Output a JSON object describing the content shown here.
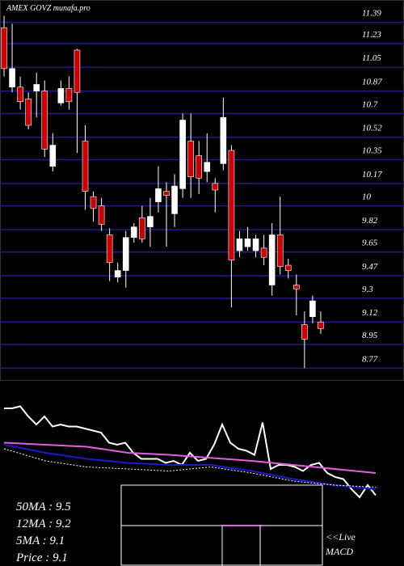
{
  "chart_data": [
    {
      "type": "candlestick",
      "title": "AMEX  GOVZ munafa.pro",
      "ylim": [
        8.68,
        11.56
      ],
      "yticks": [
        11.39,
        11.23,
        11.05,
        10.87,
        10.7,
        10.52,
        10.35,
        10.17,
        10,
        9.82,
        9.65,
        9.47,
        9.3,
        9.12,
        8.95,
        8.77
      ],
      "grid": true,
      "grid_color": "#1c1c8e",
      "up_color": "#ffffff",
      "down_color": "#cc0000",
      "open": [
        11.35,
        10.9,
        10.9,
        10.81,
        10.87,
        10.87,
        10.3,
        10.78,
        10.89,
        11.18,
        10.49,
        10.07,
        10.0,
        9.78,
        9.46,
        9.51,
        9.76,
        9.91,
        9.84,
        10.03,
        10.11,
        9.94,
        10.13,
        10.49,
        10.38,
        10.26,
        10.17,
        10.32,
        10.42,
        9.66,
        9.69,
        9.66,
        9.68,
        9.4,
        9.78,
        9.55,
        9.4,
        9.1,
        9.16,
        9.12
      ],
      "high": [
        11.44,
        11.38,
        10.98,
        10.86,
        11.01,
        10.95,
        10.55,
        10.95,
        10.98,
        11.19,
        10.61,
        10.11,
        10.06,
        9.83,
        9.57,
        9.81,
        9.87,
        10.0,
        10.06,
        10.3,
        10.18,
        10.24,
        10.7,
        10.7,
        10.49,
        10.55,
        10.21,
        10.82,
        10.46,
        9.81,
        9.84,
        9.78,
        9.78,
        9.87,
        10.07,
        9.6,
        9.48,
        9.2,
        9.32,
        9.2
      ],
      "low": [
        10.98,
        10.86,
        10.73,
        10.58,
        10.67,
        10.37,
        10.26,
        10.76,
        10.73,
        10.4,
        9.97,
        9.88,
        9.81,
        9.43,
        9.42,
        9.38,
        9.72,
        9.72,
        9.69,
        9.95,
        9.69,
        9.84,
        10.06,
        10.06,
        10.09,
        10.18,
        9.95,
        10.27,
        9.23,
        9.61,
        9.66,
        9.61,
        9.55,
        9.32,
        9.48,
        9.45,
        9.17,
        8.77,
        9.11,
        9.03
      ],
      "close": [
        11.04,
        11.04,
        10.79,
        10.61,
        10.92,
        10.43,
        10.46,
        10.89,
        10.79,
        10.86,
        10.11,
        9.98,
        9.86,
        9.57,
        9.51,
        9.76,
        9.84,
        9.75,
        9.92,
        10.13,
        10.08,
        10.15,
        10.65,
        10.22,
        10.21,
        10.33,
        10.12,
        10.67,
        9.59,
        9.75,
        9.75,
        9.75,
        9.61,
        9.78,
        9.54,
        9.51,
        9.37,
        8.99,
        9.28,
        9.07
      ],
      "annotations": [
        "50MA : 9.5",
        "12MA : 9.2",
        "5MA : 9.1",
        "Price   : 9.1"
      ],
      "macd_labels": [
        "<<Live",
        "MACD"
      ]
    },
    {
      "type": "line",
      "ylim": [
        0,
        100
      ],
      "series": [
        {
          "color": "#ffffff",
          "values": [
            92,
            92,
            94,
            84,
            76,
            84,
            74,
            76,
            74,
            74,
            72,
            70,
            68,
            58,
            56,
            58,
            48,
            42,
            42,
            42,
            38,
            40,
            36,
            48,
            40,
            42,
            56,
            76,
            58,
            52,
            50,
            46,
            78,
            32,
            36,
            36,
            34,
            30,
            36,
            38,
            28,
            24,
            22,
            12,
            4,
            16,
            6
          ]
        },
        {
          "color": "#e060e0",
          "values": [
            58,
            56,
            54,
            48,
            46,
            43,
            40,
            36,
            32,
            28
          ]
        },
        {
          "color": "#1a1acc",
          "values": [
            56,
            48,
            42,
            38,
            36,
            36,
            30,
            22,
            16,
            12
          ]
        },
        {
          "color": "#ffffff",
          "dashed": true,
          "values": [
            52,
            40,
            34,
            32,
            30,
            34,
            28,
            20,
            16,
            14
          ]
        }
      ]
    }
  ]
}
